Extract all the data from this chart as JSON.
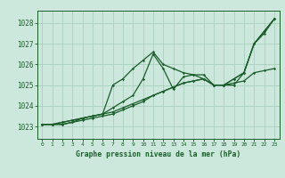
{
  "background_color": "#cce8dc",
  "grid_color": "#aacfbf",
  "line_color": "#1a5c2a",
  "title": "Graphe pression niveau de la mer (hPa)",
  "xlim": [
    -0.5,
    23.5
  ],
  "ylim": [
    1022.4,
    1028.6
  ],
  "yticks": [
    1023,
    1024,
    1025,
    1026,
    1027,
    1028
  ],
  "xticks": [
    0,
    1,
    2,
    3,
    4,
    5,
    6,
    7,
    8,
    9,
    10,
    11,
    12,
    13,
    14,
    15,
    16,
    17,
    18,
    19,
    20,
    21,
    22,
    23
  ],
  "series": [
    [
      1023.1,
      1023.1,
      1023.1,
      1023.2,
      1023.3,
      1023.4,
      1023.5,
      1023.6,
      1023.8,
      1024.0,
      1024.2,
      1024.5,
      1024.7,
      1024.9,
      1025.1,
      1025.2,
      1025.3,
      1025.0,
      1025.0,
      1025.1,
      1025.2,
      1025.6,
      1025.7,
      1025.8
    ],
    [
      1023.1,
      1023.1,
      1023.1,
      1023.2,
      1023.4,
      1023.5,
      1023.6,
      1025.0,
      1025.3,
      1025.8,
      1026.2,
      1026.6,
      1026.0,
      1025.8,
      1025.6,
      1025.5,
      1025.3,
      1025.0,
      1025.0,
      1025.0,
      1025.6,
      1027.0,
      1027.5,
      1028.2
    ],
    [
      1023.1,
      1023.1,
      1023.2,
      1023.3,
      1023.4,
      1023.5,
      1023.6,
      1023.7,
      1023.9,
      1024.1,
      1024.3,
      1024.5,
      1024.7,
      1024.9,
      1025.1,
      1025.2,
      1025.3,
      1025.0,
      1025.0,
      1025.3,
      1025.6,
      1027.0,
      1027.6,
      1028.2
    ],
    [
      1023.1,
      1023.1,
      1023.2,
      1023.3,
      1023.4,
      1023.5,
      1023.6,
      1023.9,
      1024.2,
      1024.5,
      1025.3,
      1026.5,
      1025.8,
      1024.8,
      1025.4,
      1025.5,
      1025.5,
      1025.0,
      1025.0,
      1025.3,
      1025.6,
      1027.0,
      1027.6,
      1028.2
    ]
  ]
}
